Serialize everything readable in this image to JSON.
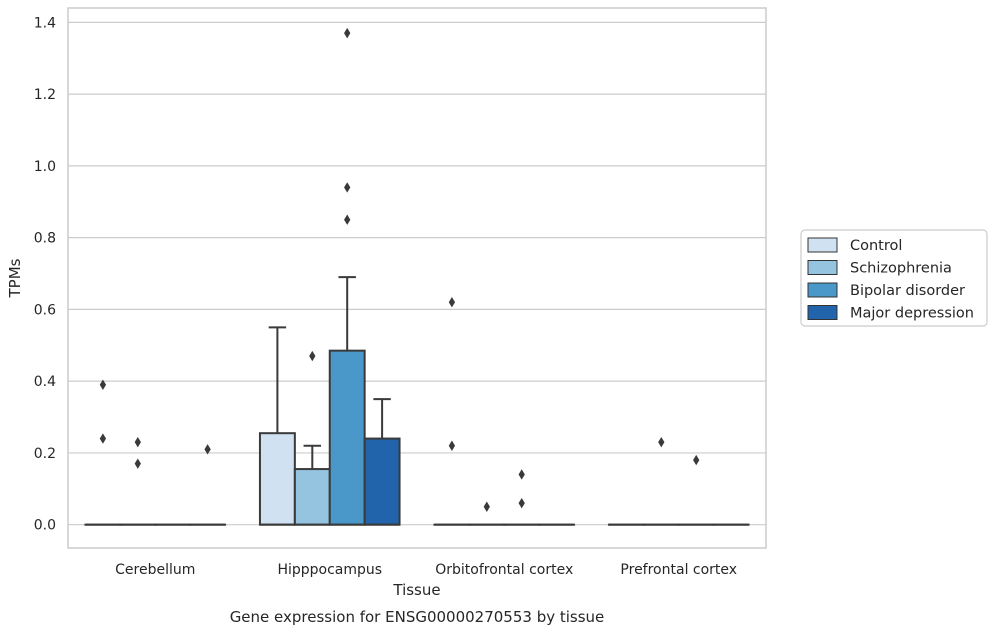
{
  "chart_data": {
    "type": "box",
    "title": "",
    "caption": "Gene expression for ENSG00000270553 by tissue",
    "xlabel": "Tissue",
    "ylabel": "TPMs",
    "ylim": [
      -0.065,
      1.44
    ],
    "yticks": [
      0.0,
      0.2,
      0.4,
      0.6,
      0.8,
      1.0,
      1.2,
      1.4
    ],
    "ytick_labels": [
      "0.0",
      "0.2",
      "0.4",
      "0.6",
      "0.8",
      "1.0",
      "1.2",
      "1.4"
    ],
    "grid": "horizontal",
    "legend_position": "right",
    "categories": [
      "Cerebellum",
      "Hipppocampus",
      "Orbitofrontal cortex",
      "Prefrontal cortex"
    ],
    "series": [
      {
        "name": "Control",
        "color": "#d0e1f2",
        "boxes": [
          {
            "q1": 0,
            "median": 0,
            "q3": 0,
            "whisker_low": 0,
            "whisker_high": 0,
            "outliers": [
              0.39,
              0.24
            ]
          },
          {
            "q1": 0,
            "median": 0,
            "q3": 0.255,
            "whisker_low": 0,
            "whisker_high": 0.55,
            "outliers": []
          },
          {
            "q1": 0,
            "median": 0,
            "q3": 0,
            "whisker_low": 0,
            "whisker_high": 0,
            "outliers": [
              0.62,
              0.22
            ]
          },
          {
            "q1": 0,
            "median": 0,
            "q3": 0,
            "whisker_low": 0,
            "whisker_high": 0,
            "outliers": []
          }
        ]
      },
      {
        "name": "Schizophrenia",
        "color": "#94c4df",
        "boxes": [
          {
            "q1": 0,
            "median": 0,
            "q3": 0,
            "whisker_low": 0,
            "whisker_high": 0,
            "outliers": [
              0.23,
              0.17
            ]
          },
          {
            "q1": 0,
            "median": 0,
            "q3": 0.155,
            "whisker_low": 0,
            "whisker_high": 0.22,
            "outliers": [
              0.47
            ]
          },
          {
            "q1": 0,
            "median": 0,
            "q3": 0,
            "whisker_low": 0,
            "whisker_high": 0,
            "outliers": [
              0.05
            ]
          },
          {
            "q1": 0,
            "median": 0,
            "q3": 0,
            "whisker_low": 0,
            "whisker_high": 0,
            "outliers": [
              0.23
            ]
          }
        ]
      },
      {
        "name": "Bipolar disorder",
        "color": "#4a98c9",
        "boxes": [
          {
            "q1": 0,
            "median": 0,
            "q3": 0,
            "whisker_low": 0,
            "whisker_high": 0,
            "outliers": []
          },
          {
            "q1": 0,
            "median": 0,
            "q3": 0.485,
            "whisker_low": 0,
            "whisker_high": 0.69,
            "outliers": [
              1.37,
              0.94,
              0.85
            ]
          },
          {
            "q1": 0,
            "median": 0,
            "q3": 0,
            "whisker_low": 0,
            "whisker_high": 0,
            "outliers": [
              0.14,
              0.06
            ]
          },
          {
            "q1": 0,
            "median": 0,
            "q3": 0,
            "whisker_low": 0,
            "whisker_high": 0,
            "outliers": [
              0.18
            ]
          }
        ]
      },
      {
        "name": "Major depression",
        "color": "#2164ab",
        "boxes": [
          {
            "q1": 0,
            "median": 0,
            "q3": 0,
            "whisker_low": 0,
            "whisker_high": 0,
            "outliers": [
              0.21
            ]
          },
          {
            "q1": 0,
            "median": 0,
            "q3": 0.24,
            "whisker_low": 0,
            "whisker_high": 0.35,
            "outliers": []
          },
          {
            "q1": 0,
            "median": 0,
            "q3": 0,
            "whisker_low": 0,
            "whisker_high": 0,
            "outliers": []
          },
          {
            "q1": 0,
            "median": 0,
            "q3": 0,
            "whisker_low": 0,
            "whisker_high": 0,
            "outliers": []
          }
        ]
      }
    ]
  }
}
